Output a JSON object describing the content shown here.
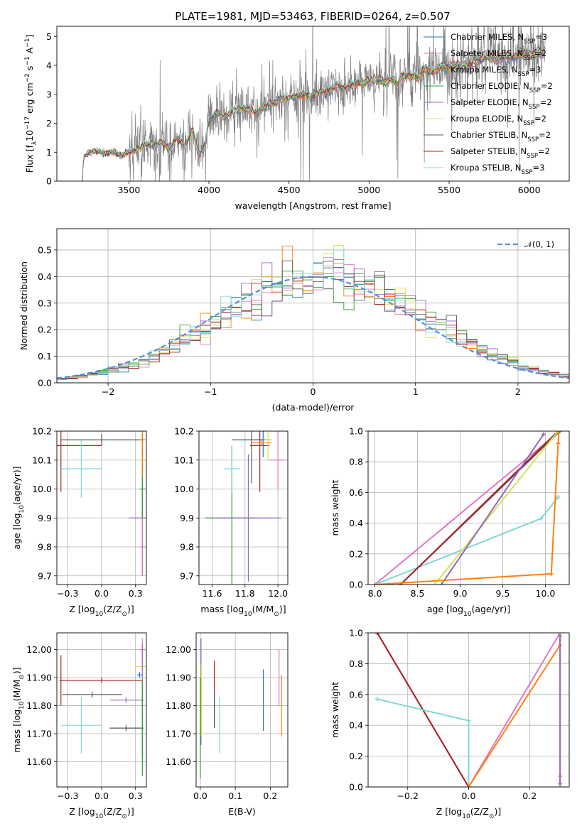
{
  "figure": {
    "title": "PLATE=1981, MJD=53463, FIBERID=0264, z=0.507"
  },
  "legend_models": [
    {
      "name": "Chabrier MILES, N_SSP=3",
      "base": "Chabrier MILES, N",
      "sub": "SSP",
      "tail": "=3",
      "color": "#1f77b4"
    },
    {
      "name": "Salpeter MILES, N_SSP=2",
      "base": "Salpeter MILES, N",
      "sub": "SSP",
      "tail": "=2",
      "color": "#e377c2"
    },
    {
      "name": "Kroupa MILES, N_SSP=3",
      "base": "Kroupa MILES, N",
      "sub": "SSP",
      "tail": "=3",
      "color": "#ff7f0e"
    },
    {
      "name": "Chabrier ELODIE, N_SSP=2",
      "base": "Chabrier ELODIE, N",
      "sub": "SSP",
      "tail": "=2",
      "color": "#2ca02c"
    },
    {
      "name": "Salpeter ELODIE, N_SSP=2",
      "base": "Salpeter ELODIE, N",
      "sub": "SSP",
      "tail": "=2",
      "color": "#9467bd"
    },
    {
      "name": "Kroupa ELODIE, N_SSP=2",
      "base": "Kroupa ELODIE, N",
      "sub": "SSP",
      "tail": "=2",
      "color": "#d4e157"
    },
    {
      "name": "Chabrier STELIB, N_SSP=2",
      "base": "Chabrier STELIB, N",
      "sub": "SSP",
      "tail": "=2",
      "color": "#555555"
    },
    {
      "name": "Salpeter STELIB, N_SSP=2",
      "base": "Salpeter STELIB, N",
      "sub": "SSP",
      "tail": "=2",
      "color": "#b22222"
    },
    {
      "name": "Kroupa STELIB, N_SSP=3",
      "base": "Kroupa STELIB, N",
      "sub": "SSP",
      "tail": "=3",
      "color": "#7fd6d6"
    }
  ],
  "chart_data": [
    {
      "id": "spectrum",
      "type": "line",
      "title": "PLATE=1981, MJD=53463, FIBERID=0264, z=0.507",
      "xlabel": "wavelength [Angstrom, rest frame]",
      "ylabel": "Flux [f_λ 10^-17 erg cm^-2 s^-1 A^-1]",
      "xlim": [
        3050,
        6250
      ],
      "ylim": [
        0,
        5.35
      ],
      "xticks": [
        3500,
        4000,
        4500,
        5000,
        5500,
        6000
      ],
      "yticks": [
        0,
        1,
        2,
        3,
        4,
        5
      ],
      "grid": false,
      "legend": "top-right",
      "data_color": "#808080",
      "model_knots": [
        [
          3200,
          0
        ],
        [
          3220,
          0.85
        ],
        [
          3260,
          1.0
        ],
        [
          3300,
          1.05
        ],
        [
          3350,
          0.95
        ],
        [
          3400,
          1.0
        ],
        [
          3450,
          0.9
        ],
        [
          3500,
          1.0
        ],
        [
          3550,
          1.05
        ],
        [
          3600,
          1.3
        ],
        [
          3650,
          1.2
        ],
        [
          3700,
          1.4
        ],
        [
          3750,
          1.1
        ],
        [
          3800,
          1.5
        ],
        [
          3850,
          1.2
        ],
        [
          3900,
          1.8
        ],
        [
          3933,
          0.95
        ],
        [
          3968,
          1.1
        ],
        [
          4000,
          2.1
        ],
        [
          4050,
          2.35
        ],
        [
          4100,
          2.2
        ],
        [
          4150,
          2.45
        ],
        [
          4200,
          2.5
        ],
        [
          4250,
          2.45
        ],
        [
          4300,
          2.35
        ],
        [
          4350,
          2.6
        ],
        [
          4400,
          2.7
        ],
        [
          4450,
          2.8
        ],
        [
          4500,
          2.9
        ],
        [
          4550,
          2.95
        ],
        [
          4600,
          3.0
        ],
        [
          4650,
          2.9
        ],
        [
          4700,
          3.1
        ],
        [
          4750,
          3.15
        ],
        [
          4800,
          3.3
        ],
        [
          4850,
          3.2
        ],
        [
          4900,
          3.35
        ],
        [
          4950,
          3.4
        ],
        [
          5000,
          3.45
        ],
        [
          5050,
          3.5
        ],
        [
          5100,
          3.4
        ],
        [
          5150,
          3.55
        ],
        [
          5175,
          3.3
        ],
        [
          5200,
          3.6
        ],
        [
          5250,
          3.65
        ],
        [
          5300,
          3.6
        ],
        [
          5350,
          3.9
        ],
        [
          5400,
          3.75
        ],
        [
          5450,
          3.95
        ],
        [
          5500,
          3.95
        ],
        [
          5550,
          4.0
        ],
        [
          5600,
          3.95
        ],
        [
          5650,
          4.1
        ],
        [
          5700,
          4.2
        ],
        [
          5750,
          4.3
        ],
        [
          5800,
          4.2
        ],
        [
          5850,
          4.3
        ],
        [
          5900,
          4.25
        ],
        [
          5950,
          4.4
        ],
        [
          6000,
          4.4
        ],
        [
          6050,
          4.45
        ],
        [
          6100,
          4.45
        ]
      ]
    },
    {
      "id": "residuals",
      "type": "line",
      "xlabel": "(data-model)/error",
      "ylabel": "Normed distribution",
      "xlim": [
        -2.5,
        2.5
      ],
      "ylim": [
        0,
        0.58
      ],
      "xticks": [
        -2,
        -1,
        0,
        1,
        2
      ],
      "yticks": [
        0.0,
        0.1,
        0.2,
        0.3,
        0.4,
        0.5
      ],
      "grid": true,
      "legend": "top-right",
      "gaussian": {
        "label": "𝒩(0, 1)",
        "mean": 0,
        "sigma": 1,
        "color": "#5b8fd9"
      },
      "bin_width": 0.1,
      "series_count": 9
    },
    {
      "id": "age-vs-Z",
      "type": "scatter",
      "xlabel": "Z [log10(Z/Z☉)]",
      "ylabel": "age [log10(age/yr)]",
      "xlim": [
        -0.33,
        0.33
      ],
      "ylim": [
        9.67,
        10.2
      ],
      "xticks": [
        -0.25,
        0.0,
        0.25
      ],
      "yticks": [
        9.7,
        9.8,
        9.9,
        10.0,
        10.1,
        10.2
      ],
      "grid": true,
      "errorbars": [
        {
          "x": 0.3,
          "y": 10.17,
          "xerr": 0.02,
          "yerr": 0.02,
          "color": "#1f77b4"
        },
        {
          "x": 0.0,
          "y": 10.17,
          "xerr": 0.3,
          "yerr": 0.02,
          "color": "#555555"
        },
        {
          "x": 0.3,
          "y": 9.9,
          "xerr": 0.1,
          "yerr": 0.2,
          "color": "#9467bd"
        },
        {
          "x": 0.3,
          "y": 10.1,
          "xerr": 0.03,
          "yerr": 0.06,
          "color": "#d4e157"
        },
        {
          "x": 0.3,
          "y": 10.0,
          "xerr": 0.02,
          "yerr": 0.3,
          "color": "#2ca02c"
        },
        {
          "x": -0.3,
          "y": 10.15,
          "xerr": 0.3,
          "yerr": 0.16,
          "color": "#b22222"
        },
        {
          "x": -0.15,
          "y": 10.07,
          "xerr": 0.15,
          "yerr": 0.1,
          "color": "#7fd6d6"
        },
        {
          "x": 0.3,
          "y": 10.17,
          "xerr": 0.02,
          "yerr": 0.12,
          "color": "#ff7f0e"
        },
        {
          "x": 0.3,
          "y": 9.8,
          "xerr": 0.02,
          "yerr": 0.1,
          "color": "#e377c2"
        }
      ]
    },
    {
      "id": "age-vs-mass",
      "type": "scatter",
      "xlabel": "mass [log10(M/M☉)]",
      "ylabel": "",
      "xlim": [
        11.52,
        12.06
      ],
      "ylim": [
        9.67,
        10.2
      ],
      "xticks": [
        11.6,
        11.8,
        12.0
      ],
      "yticks": [
        9.7,
        9.8,
        9.9,
        10.0,
        10.1,
        10.2
      ],
      "grid": true,
      "errorbars": [
        {
          "x": 11.72,
          "y": 9.9,
          "xerr": 0.16,
          "yerr": 0.25,
          "color": "#2ca02c"
        },
        {
          "x": 11.72,
          "y": 10.07,
          "xerr": 0.05,
          "yerr": 0.08,
          "color": "#7fd6d6"
        },
        {
          "x": 11.82,
          "y": 9.9,
          "xerr": 0.2,
          "yerr": 0.22,
          "color": "#9467bd"
        },
        {
          "x": 11.84,
          "y": 10.17,
          "xerr": 0.12,
          "yerr": 0.15,
          "color": "#555555"
        },
        {
          "x": 11.89,
          "y": 10.15,
          "xerr": 0.06,
          "yerr": 0.16,
          "color": "#b22222"
        },
        {
          "x": 11.91,
          "y": 10.17,
          "xerr": 0.04,
          "yerr": 0.06,
          "color": "#1f77b4"
        },
        {
          "x": 11.94,
          "y": 10.17,
          "xerr": 0.02,
          "yerr": 0.07,
          "color": "#d4e157"
        },
        {
          "x": 11.9,
          "y": 10.16,
          "xerr": 0.06,
          "yerr": 0.01,
          "color": "#ff7f0e"
        },
        {
          "x": 12.0,
          "y": 10.1,
          "xerr": 0.05,
          "yerr": 0.1,
          "color": "#e377c2"
        }
      ]
    },
    {
      "id": "mass-weight-vs-age",
      "type": "line",
      "xlabel": "age [log10(age/yr)]",
      "ylabel": "mass weight",
      "xlim": [
        7.92,
        10.28
      ],
      "ylim": [
        0,
        1
      ],
      "xticks": [
        8.0,
        8.5,
        9.0,
        9.5,
        10.0
      ],
      "yticks": [
        0.0,
        0.2,
        0.4,
        0.6,
        0.8,
        1.0
      ],
      "grid": true,
      "series": [
        {
          "name": "Salpeter MILES",
          "color": "#e377c2",
          "x": [
            8.0,
            10.17
          ],
          "y": [
            0.0,
            1.0
          ]
        },
        {
          "name": "Kroupa STELIB",
          "color": "#7fd6d6",
          "x": [
            8.0,
            9.95,
            10.15
          ],
          "y": [
            0.0,
            0.43,
            0.57
          ]
        },
        {
          "name": "Chabrier STELIB",
          "color": "#555555",
          "x": [
            8.3,
            10.17
          ],
          "y": [
            0.0,
            1.0
          ]
        },
        {
          "name": "Salpeter STELIB",
          "color": "#b22222",
          "x": [
            8.3,
            10.15
          ],
          "y": [
            0.0,
            1.0
          ]
        },
        {
          "name": "Kroupa ELODIE",
          "color": "#d4e157",
          "x": [
            8.7,
            10.15
          ],
          "y": [
            0.0,
            1.0
          ]
        },
        {
          "name": "Salpeter ELODIE",
          "color": "#9467bd",
          "x": [
            8.78,
            9.98
          ],
          "y": [
            0.0,
            0.98
          ]
        },
        {
          "name": "Kroupa MILES",
          "color": "#ff7f0e",
          "x": [
            8.0,
            10.07,
            10.15,
            10.16
          ],
          "y": [
            0.0,
            0.07,
            0.92,
            1.0
          ]
        }
      ]
    },
    {
      "id": "mass-vs-Z",
      "type": "scatter",
      "xlabel": "Z [log10(Z/Z☉)]",
      "ylabel": "mass [log10(M/M☉)]",
      "xlim": [
        -0.33,
        0.33
      ],
      "ylim": [
        11.51,
        12.06
      ],
      "xticks": [
        -0.25,
        0.0,
        0.25
      ],
      "yticks": [
        11.6,
        11.7,
        11.8,
        11.9,
        12.0
      ],
      "grid": true,
      "errorbars": [
        {
          "x": 0.3,
          "y": 11.94,
          "xerr": 0.05,
          "yerr": 0.01,
          "color": "#d4e157"
        },
        {
          "x": 0.28,
          "y": 11.91,
          "xerr": 0.02,
          "yerr": 0.01,
          "color": "#1f77b4"
        },
        {
          "x": 0.3,
          "y": 12.0,
          "xerr": 0.02,
          "yerr": 0.04,
          "color": "#e377c2"
        },
        {
          "x": 0.0,
          "y": 11.89,
          "xerr": 0.3,
          "yerr": 0.01,
          "color": "#b22222"
        },
        {
          "x": -0.3,
          "y": 11.89,
          "xerr": 0.01,
          "yerr": 0.09,
          "color": "#b22222"
        },
        {
          "x": -0.07,
          "y": 11.84,
          "xerr": 0.22,
          "yerr": 0.01,
          "color": "#555555"
        },
        {
          "x": 0.3,
          "y": 11.82,
          "xerr": 0.01,
          "yerr": 0.2,
          "color": "#9467bd"
        },
        {
          "x": 0.18,
          "y": 11.82,
          "xerr": 0.12,
          "yerr": 0.01,
          "color": "#9467bd"
        },
        {
          "x": -0.15,
          "y": 11.73,
          "xerr": 0.15,
          "yerr": 0.1,
          "color": "#7fd6d6"
        },
        {
          "x": 0.18,
          "y": 11.72,
          "xerr": 0.12,
          "yerr": 0.01,
          "color": "#555555"
        },
        {
          "x": 0.3,
          "y": 11.72,
          "xerr": 0.01,
          "yerr": 0.17,
          "color": "#2ca02c"
        }
      ]
    },
    {
      "id": "mass-vs-EBV",
      "type": "scatter",
      "xlabel": "E(B-V)",
      "ylabel": "",
      "xlim": [
        -0.012,
        0.25
      ],
      "ylim": [
        11.51,
        12.06
      ],
      "xticks": [
        0.0,
        0.1,
        0.2
      ],
      "yticks": [
        11.6,
        11.7,
        11.8,
        11.9,
        12.0
      ],
      "grid": true,
      "errorbars": [
        {
          "x": 0.002,
          "y": 11.85,
          "xerr": 0,
          "yerr": 0.19,
          "color": "#9467bd"
        },
        {
          "x": 0.003,
          "y": 11.82,
          "xerr": 0,
          "yerr": 0.13,
          "color": "#d4e157"
        },
        {
          "x": 0.0,
          "y": 11.72,
          "xerr": 0,
          "yerr": 0.18,
          "color": "#2ca02c"
        },
        {
          "x": 0.04,
          "y": 11.84,
          "xerr": 0,
          "yerr": 0.12,
          "color": "#b22222"
        },
        {
          "x": 0.04,
          "y": 11.78,
          "xerr": 0,
          "yerr": 0.06,
          "color": "#555555"
        },
        {
          "x": 0.055,
          "y": 11.73,
          "xerr": 0,
          "yerr": 0.1,
          "color": "#7fd6d6"
        },
        {
          "x": 0.18,
          "y": 11.82,
          "xerr": 0,
          "yerr": 0.11,
          "color": "#1f77b4"
        },
        {
          "x": 0.225,
          "y": 11.9,
          "xerr": 0,
          "yerr": 0.1,
          "color": "#e377c2"
        },
        {
          "x": 0.232,
          "y": 11.8,
          "xerr": 0,
          "yerr": 0.11,
          "color": "#ff7f0e"
        }
      ]
    },
    {
      "id": "mass-weight-vs-Z",
      "type": "line",
      "xlabel": "Z [log10(Z/Z☉)]",
      "ylabel": "mass weight",
      "xlim": [
        -0.33,
        0.33
      ],
      "ylim": [
        0,
        1
      ],
      "xticks": [
        -0.2,
        0.0,
        0.2
      ],
      "yticks": [
        0.0,
        0.2,
        0.4,
        0.6,
        0.8,
        1.0
      ],
      "grid": true,
      "series": [
        {
          "name": "Chabrier STELIB",
          "color": "#555555",
          "x": [
            -0.3,
            0.0
          ],
          "y": [
            1.0,
            0.0
          ]
        },
        {
          "name": "Salpeter STELIB",
          "color": "#b22222",
          "x": [
            -0.3,
            0.0
          ],
          "y": [
            1.0,
            0.0
          ]
        },
        {
          "name": "Kroupa STELIB",
          "color": "#7fd6d6",
          "x": [
            -0.3,
            0.0,
            0.0
          ],
          "y": [
            0.57,
            0.43,
            0.0
          ]
        },
        {
          "name": "Salpeter MILES",
          "color": "#e377c2",
          "x": [
            0.0,
            0.3
          ],
          "y": [
            0.0,
            1.0
          ]
        },
        {
          "name": "Kroupa MILES",
          "color": "#ff7f0e",
          "x": [
            0.0,
            0.3,
            0.3,
            0.3
          ],
          "y": [
            0.0,
            0.92,
            0.07,
            1.0
          ]
        },
        {
          "name": "Kroupa ELODIE",
          "color": "#d4e157",
          "x": [
            0.3,
            0.3
          ],
          "y": [
            0.0,
            1.0
          ]
        },
        {
          "name": "Salpeter ELODIE",
          "color": "#9467bd",
          "x": [
            0.3,
            0.3
          ],
          "y": [
            0.02,
            0.98
          ]
        }
      ]
    }
  ]
}
